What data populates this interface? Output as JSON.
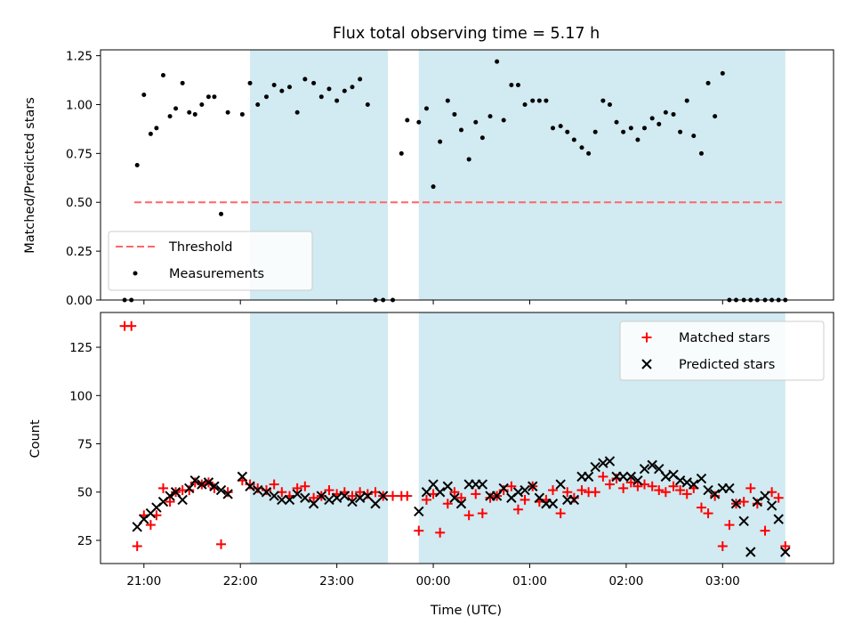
{
  "colors": {
    "band": "#add8e6",
    "threshold": "#ff6666",
    "measurements": "#000000",
    "matched": "#ff0000",
    "predicted": "#000000"
  },
  "chart_data": [
    {
      "type": "scatter",
      "title": "Flux total observing time = 5.17 h",
      "xlabel": "",
      "ylabel": "Matched/Predicted stars",
      "x_unit": "hours since 20:00 UTC",
      "xlim": [
        20.55,
        28.15
      ],
      "ylim": [
        0.0,
        1.28
      ],
      "yticks": [
        0.0,
        0.25,
        0.5,
        0.75,
        1.0,
        1.25
      ],
      "ytick_labels": [
        "0.00",
        "0.25",
        "0.50",
        "0.75",
        "1.00",
        "1.25"
      ],
      "shaded_intervals": [
        [
          22.1,
          23.53
        ],
        [
          23.85,
          27.65
        ]
      ],
      "threshold": {
        "name": "Threshold",
        "y": 0.5,
        "x": [
          20.9,
          27.65
        ],
        "style": "dashed"
      },
      "legend": {
        "position": "lower-left",
        "entries": [
          "Threshold",
          "Measurements"
        ]
      },
      "series": [
        {
          "name": "Measurements",
          "marker": "dot",
          "x": [
            20.8,
            20.87,
            20.93,
            21.0,
            21.07,
            21.13,
            21.2,
            21.27,
            21.33,
            21.4,
            21.47,
            21.53,
            21.6,
            21.67,
            21.73,
            21.8,
            21.87,
            22.02,
            22.1,
            22.18,
            22.27,
            22.35,
            22.43,
            22.51,
            22.59,
            22.67,
            22.76,
            22.84,
            22.92,
            23.0,
            23.08,
            23.16,
            23.24,
            23.32,
            23.4,
            23.48,
            23.58,
            23.67,
            23.73,
            23.85,
            23.93,
            24.0,
            24.07,
            24.15,
            24.22,
            24.29,
            24.37,
            24.44,
            24.51,
            24.59,
            24.66,
            24.73,
            24.81,
            24.88,
            24.95,
            25.03,
            25.1,
            25.17,
            25.24,
            25.32,
            25.39,
            25.46,
            25.54,
            25.61,
            25.68,
            25.76,
            25.83,
            25.9,
            25.97,
            26.05,
            26.12,
            26.19,
            26.27,
            26.34,
            26.41,
            26.49,
            26.56,
            26.63,
            26.7,
            26.78,
            26.85,
            26.92,
            27.0,
            27.07,
            27.14,
            27.22,
            27.29,
            27.36,
            27.44,
            27.51,
            27.58,
            27.65
          ],
          "y": [
            0.0,
            0.0,
            0.69,
            1.05,
            0.85,
            0.88,
            1.15,
            0.94,
            0.98,
            1.11,
            0.96,
            0.95,
            1.0,
            1.04,
            1.04,
            0.44,
            0.96,
            0.95,
            1.11,
            1.0,
            1.04,
            1.1,
            1.07,
            1.09,
            0.96,
            1.13,
            1.11,
            1.04,
            1.08,
            1.02,
            1.07,
            1.09,
            1.13,
            1.0,
            0.0,
            0.0,
            0.0,
            0.75,
            0.92,
            0.91,
            0.98,
            0.58,
            0.81,
            1.02,
            0.95,
            0.87,
            0.72,
            0.91,
            0.83,
            0.94,
            1.22,
            0.92,
            1.1,
            1.1,
            1.0,
            1.02,
            1.02,
            1.02,
            0.88,
            0.89,
            0.86,
            0.82,
            0.78,
            0.75,
            0.86,
            1.02,
            1.0,
            0.91,
            0.86,
            0.88,
            0.82,
            0.88,
            0.93,
            0.9,
            0.96,
            0.95,
            0.86,
            1.02,
            0.84,
            0.75,
            1.11,
            0.94,
            1.16,
            0.0,
            0.0,
            0.0,
            0.0,
            0.0,
            0.0,
            0.0,
            0.0,
            0.0
          ]
        }
      ]
    },
    {
      "type": "scatter",
      "title": "",
      "xlabel": "Time (UTC)",
      "ylabel": "Count",
      "x_unit": "hours since 20:00 UTC",
      "xlim": [
        20.55,
        28.15
      ],
      "ylim": [
        13.0,
        143.0
      ],
      "yticks": [
        25,
        50,
        75,
        100,
        125
      ],
      "ytick_labels": [
        "25",
        "50",
        "75",
        "100",
        "125"
      ],
      "xticks": [
        21.0,
        22.0,
        23.0,
        24.0,
        25.0,
        26.0,
        27.0
      ],
      "xtick_labels": [
        "21:00",
        "22:00",
        "23:00",
        "00:00",
        "01:00",
        "02:00",
        "03:00"
      ],
      "shaded_intervals": [
        [
          22.1,
          23.53
        ],
        [
          23.85,
          27.65
        ]
      ],
      "legend": {
        "position": "upper-right",
        "entries": [
          "Matched stars",
          "Predicted stars"
        ]
      },
      "series": [
        {
          "name": "Matched stars",
          "marker": "plus",
          "x": [
            20.8,
            20.87,
            20.93,
            21.0,
            21.07,
            21.13,
            21.2,
            21.27,
            21.33,
            21.4,
            21.47,
            21.53,
            21.6,
            21.67,
            21.73,
            21.8,
            21.87,
            22.02,
            22.1,
            22.18,
            22.27,
            22.35,
            22.43,
            22.51,
            22.59,
            22.67,
            22.76,
            22.84,
            22.92,
            23.0,
            23.08,
            23.16,
            23.24,
            23.32,
            23.4,
            23.48,
            23.58,
            23.67,
            23.73,
            23.85,
            23.93,
            24.0,
            24.07,
            24.15,
            24.22,
            24.29,
            24.37,
            24.44,
            24.51,
            24.59,
            24.66,
            24.73,
            24.81,
            24.88,
            24.95,
            25.03,
            25.1,
            25.17,
            25.24,
            25.32,
            25.39,
            25.46,
            25.54,
            25.61,
            25.68,
            25.76,
            25.83,
            25.9,
            25.97,
            26.05,
            26.12,
            26.19,
            26.27,
            26.34,
            26.41,
            26.49,
            26.56,
            26.63,
            26.7,
            26.78,
            26.85,
            26.92,
            27.0,
            27.07,
            27.14,
            27.22,
            27.29,
            27.36,
            27.44,
            27.51,
            27.58,
            27.65
          ],
          "y": [
            136,
            136,
            22,
            38,
            33,
            38,
            52,
            45,
            50,
            51,
            51,
            55,
            54,
            55,
            52,
            23,
            50,
            56,
            54,
            52,
            51,
            54,
            50,
            48,
            52,
            53,
            47,
            48,
            51,
            49,
            50,
            48,
            50,
            49,
            50,
            48,
            48,
            48,
            48,
            30,
            46,
            49,
            29,
            44,
            50,
            47,
            38,
            49,
            39,
            47,
            48,
            51,
            53,
            41,
            46,
            53,
            45,
            46,
            51,
            39,
            50,
            47,
            51,
            50,
            50,
            58,
            54,
            57,
            52,
            55,
            53,
            54,
            53,
            51,
            50,
            53,
            51,
            49,
            52,
            42,
            39,
            48,
            22,
            33,
            44,
            45,
            52,
            44,
            30,
            50,
            47,
            22
          ]
        },
        {
          "name": "Predicted stars",
          "marker": "x",
          "x": [
            20.93,
            21.0,
            21.07,
            21.13,
            21.2,
            21.27,
            21.33,
            21.4,
            21.47,
            21.53,
            21.6,
            21.67,
            21.73,
            21.8,
            21.87,
            22.02,
            22.1,
            22.18,
            22.27,
            22.35,
            22.43,
            22.51,
            22.59,
            22.67,
            22.76,
            22.84,
            22.92,
            23.0,
            23.08,
            23.16,
            23.24,
            23.32,
            23.4,
            23.48,
            23.85,
            23.93,
            24.0,
            24.07,
            24.15,
            24.22,
            24.29,
            24.37,
            24.44,
            24.51,
            24.59,
            24.66,
            24.73,
            24.81,
            24.88,
            24.95,
            25.03,
            25.1,
            25.17,
            25.24,
            25.32,
            25.39,
            25.46,
            25.54,
            25.61,
            25.68,
            25.76,
            25.83,
            25.9,
            25.97,
            26.05,
            26.12,
            26.19,
            26.27,
            26.34,
            26.41,
            26.49,
            26.56,
            26.63,
            26.7,
            26.78,
            26.85,
            26.92,
            27.0,
            27.07,
            27.14,
            27.22,
            27.29,
            27.36,
            27.44,
            27.51,
            27.58,
            27.65
          ],
          "y": [
            32,
            36,
            39,
            42,
            45,
            48,
            50,
            46,
            52,
            56,
            54,
            55,
            53,
            51,
            49,
            58,
            53,
            51,
            50,
            48,
            46,
            46,
            49,
            47,
            44,
            48,
            46,
            47,
            48,
            45,
            47,
            48,
            44,
            48,
            40,
            50,
            54,
            50,
            53,
            47,
            44,
            54,
            54,
            54,
            48,
            48,
            52,
            47,
            50,
            51,
            53,
            47,
            44,
            44,
            54,
            46,
            46,
            58,
            58,
            63,
            65,
            66,
            58,
            58,
            58,
            56,
            62,
            64,
            62,
            58,
            59,
            56,
            55,
            54,
            57,
            51,
            49,
            52,
            52,
            44,
            35,
            19,
            45,
            48,
            43,
            36,
            19
          ]
        }
      ]
    }
  ]
}
